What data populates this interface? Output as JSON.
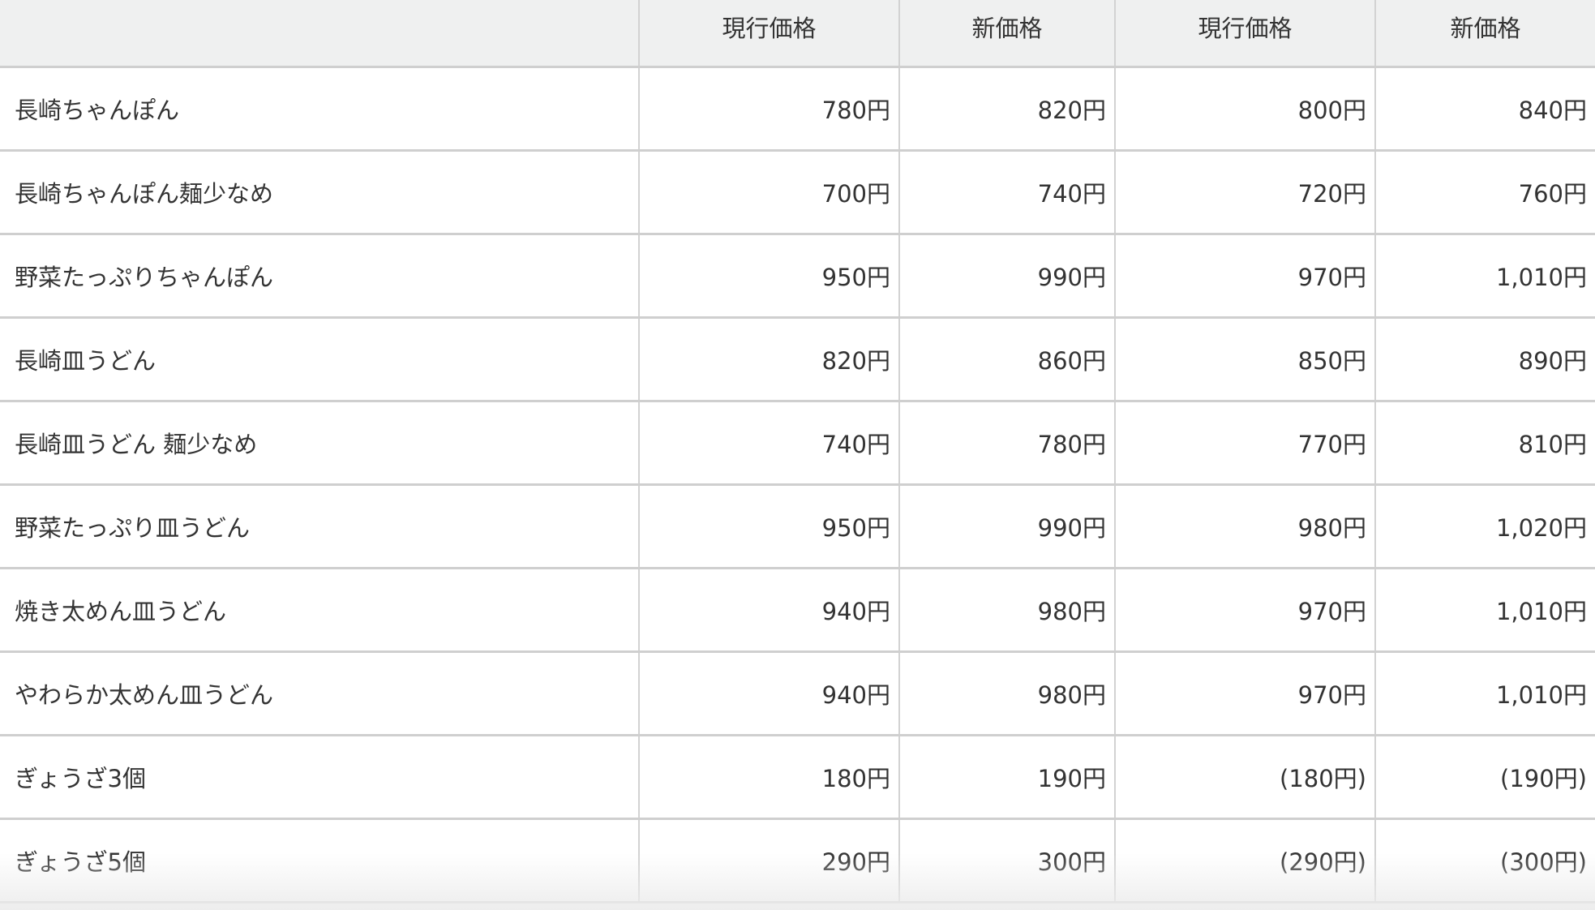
{
  "table": {
    "headers": [
      "",
      "現行価格",
      "新価格",
      "現行価格",
      "新価格"
    ],
    "rows": [
      [
        "長崎ちゃんぽん",
        "780円",
        "820円",
        "800円",
        "840円"
      ],
      [
        "長崎ちゃんぽん麺少なめ",
        "700円",
        "740円",
        "720円",
        "760円"
      ],
      [
        "野菜たっぷりちゃんぽん",
        "950円",
        "990円",
        "970円",
        "1,010円"
      ],
      [
        "長崎皿うどん",
        "820円",
        "860円",
        "850円",
        "890円"
      ],
      [
        "長崎皿うどん 麺少なめ",
        "740円",
        "780円",
        "770円",
        "810円"
      ],
      [
        "野菜たっぷり皿うどん",
        "950円",
        "990円",
        "980円",
        "1,020円"
      ],
      [
        "焼き太めん皿うどん",
        "940円",
        "980円",
        "970円",
        "1,010円"
      ],
      [
        "やわらか太めん皿うどん",
        "940円",
        "980円",
        "970円",
        "1,010円"
      ],
      [
        "ぎょうざ3個",
        "180円",
        "190円",
        "(180円)",
        "(190円)"
      ],
      [
        "ぎょうざ5個",
        "290円",
        "300円",
        "(290円)",
        "(300円)"
      ]
    ]
  }
}
